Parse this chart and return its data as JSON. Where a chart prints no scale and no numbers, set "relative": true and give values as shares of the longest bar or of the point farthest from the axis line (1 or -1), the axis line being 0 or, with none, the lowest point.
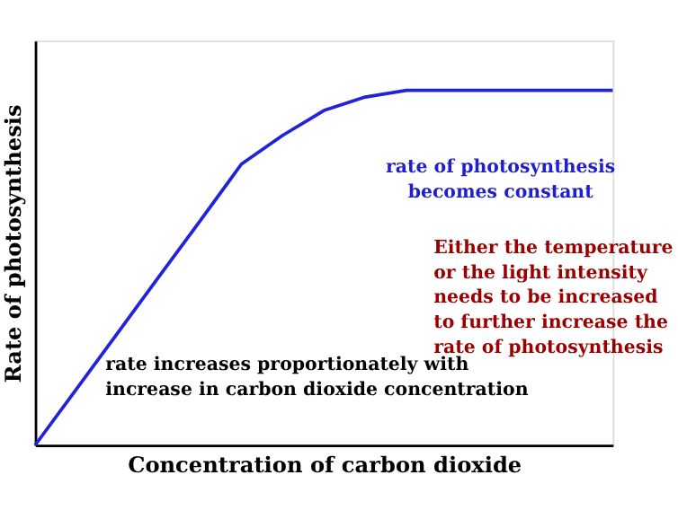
{
  "chart_data": {
    "type": "line",
    "relative": true,
    "xlabel": "Concentration of carbon dioxide",
    "ylabel": "Rate of photosynthesis",
    "categories": [
      null,
      null,
      null,
      null,
      null,
      null,
      null,
      null,
      null,
      null,
      null,
      null,
      null,
      null,
      null
    ],
    "series": [
      {
        "color": "#2222dd",
        "values": [
          0,
          0.158,
          0.316,
          0.475,
          0.632,
          0.792,
          0.873,
          0.943,
          0.981,
          1,
          1,
          1,
          1,
          1,
          1
        ]
      }
    ],
    "annotations": [
      "rate of photosynthesis\nbecomes constant",
      "Either the temperature\nor the light intensity\nneeds to be increased\nto further increase the\nrate of photosynthesis",
      "rate increases proportionately with\nincrease in carbon dioxide concentration"
    ],
    "grid": false
  }
}
